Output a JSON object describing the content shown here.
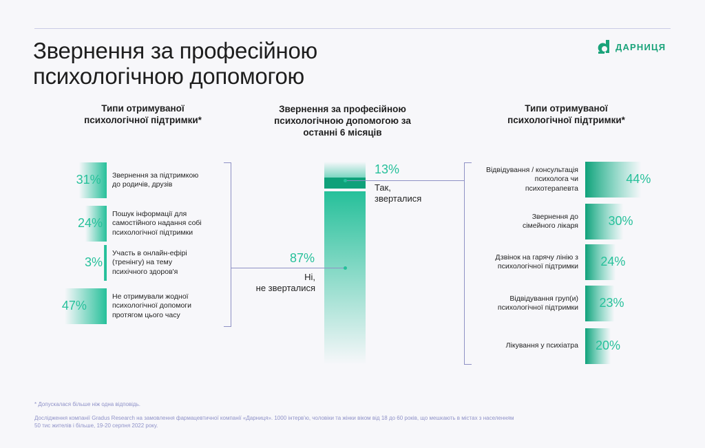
{
  "title_line1": "Звернення за професійною",
  "title_line2": "психологічною допомогою",
  "logo_text": "ДАРНИЦЯ",
  "left": {
    "header_line1": "Типи отримуваної",
    "header_line2": "психологічної підтримки*"
  },
  "middle": {
    "header_line1": "Звернення за професійною",
    "header_line2": "психологічною допомогою за",
    "header_line3": "останні 6 місяців"
  },
  "right": {
    "header_line1": "Типи отримуваної",
    "header_line2": "психологічної підтримки*"
  },
  "chart_data": [
    {
      "type": "bar",
      "categories": [
        "Звернення за підтримкою до родичів, друзів",
        "Пошук інформації для самостійного надання собі психологічної підтримки",
        "Участь в онлайн-ефірі (тренінгу) на тему психічного здоров'я",
        "Не отримували жодної психологічної допомоги протягом цього часу"
      ],
      "category_lines": [
        [
          "Звернення за підтримкою",
          "до родичів, друзів"
        ],
        [
          "Пошук інформації для",
          "самостійного надання собі",
          "психологічної підтримки"
        ],
        [
          "Участь в онлайн-ефірі",
          "(тренінгу) на тему",
          "психічного здоров'я"
        ],
        [
          "Не отримували жодної",
          "психологічної допомоги",
          "протягом цього часу"
        ]
      ],
      "values": [
        31,
        24,
        3,
        47
      ],
      "value_labels": [
        "31%",
        "24%",
        "3%",
        "47%"
      ],
      "orientation": "horizontal",
      "direction": "leftward"
    },
    {
      "type": "bar",
      "stacked": true,
      "categories": [
        "Так, зверталися",
        "Ні, не зверталися"
      ],
      "category_lines": [
        [
          "Так,",
          "зверталися"
        ],
        [
          "Ні,",
          "не зверталися"
        ]
      ],
      "values": [
        13,
        87
      ],
      "value_labels": [
        "13%",
        "87%"
      ]
    },
    {
      "type": "bar",
      "categories": [
        "Відвідування / консультація психолога чи психотерапевта",
        "Звернення до сімейного лікаря",
        "Дзвінок на гарячу лінію з психологічної підтримки",
        "Відвідування груп(и) психологічної підтримки",
        "Лікування у психіатра"
      ],
      "category_lines": [
        [
          "Відвідування / консультація",
          "психолога чи",
          "психотерапевта"
        ],
        [
          "Звернення до",
          "сімейного лікаря"
        ],
        [
          "Дзвінок на гарячу лінію з",
          "психологічної підтримки"
        ],
        [
          "Відвідування груп(и)",
          "психологічної підтримки"
        ],
        [
          "Лікування у психіатра"
        ]
      ],
      "values": [
        44,
        30,
        24,
        23,
        20
      ],
      "value_labels": [
        "44%",
        "30%",
        "24%",
        "23%",
        "20%"
      ],
      "orientation": "horizontal",
      "direction": "rightward"
    }
  ],
  "colors": {
    "accent": "#26c09a",
    "accent_dark": "#0fa17a",
    "bracket": "#8d90c4",
    "footnote": "#8f92c8"
  },
  "footnote1": "* Допускалася більше ніж одна відповідь.",
  "footnote2_line1": "Дослідження компанії Gradus Research на замовлення фармацевтичної компанії «Дарниця». 1000 інтерв'ю, чоловіки та жінки віком від 18 до 60 років,  що мешкають в містах з населенням",
  "footnote2_line2": "50 тис жителів і більше, 19-20 серпня 2022 року."
}
